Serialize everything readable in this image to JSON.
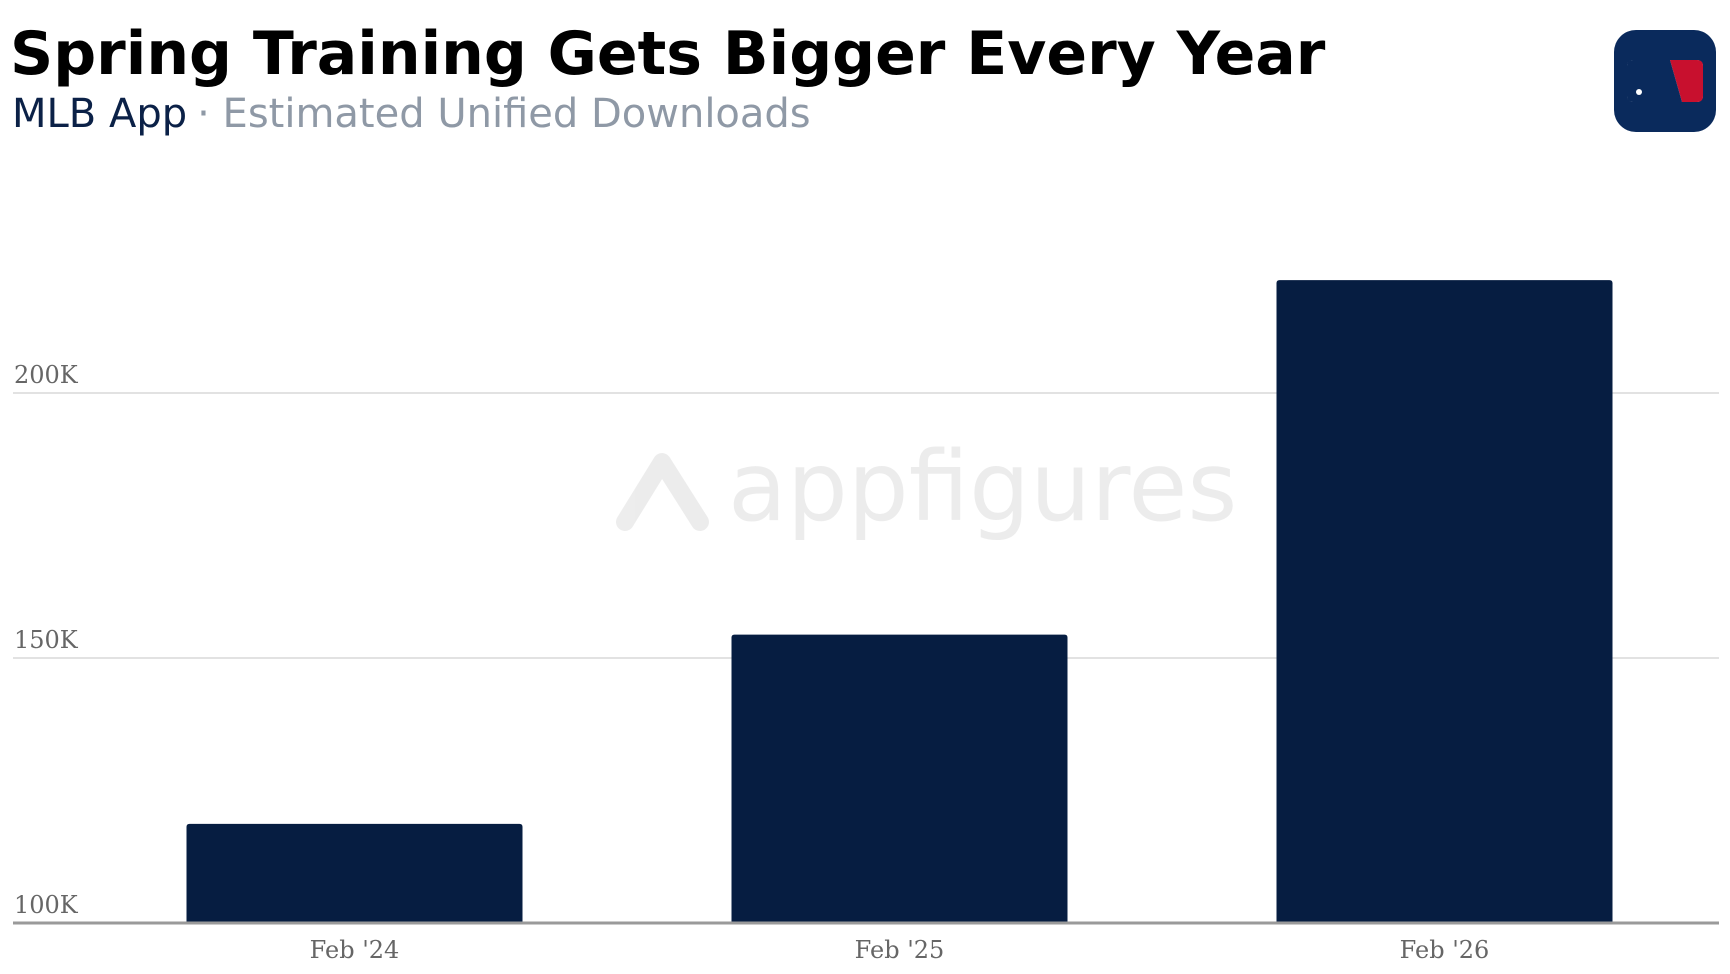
{
  "chart_data": {
    "type": "bar",
    "title": "Spring Training Gets Bigger Every Year",
    "subtitle_app": "MLB App",
    "subtitle": "· Estimated Unified Downloads",
    "watermark": "appfigures",
    "categories": [
      "Feb '24",
      "Feb '25",
      "Feb '26"
    ],
    "values": [
      118700,
      154400,
      221300
    ],
    "color": "#061d41",
    "ylim": [
      100000,
      240000
    ],
    "yticks": [
      {
        "value": 100000,
        "label": "100K"
      },
      {
        "value": 150000,
        "label": "150K"
      },
      {
        "value": 200000,
        "label": "200K"
      }
    ],
    "grid": true
  }
}
